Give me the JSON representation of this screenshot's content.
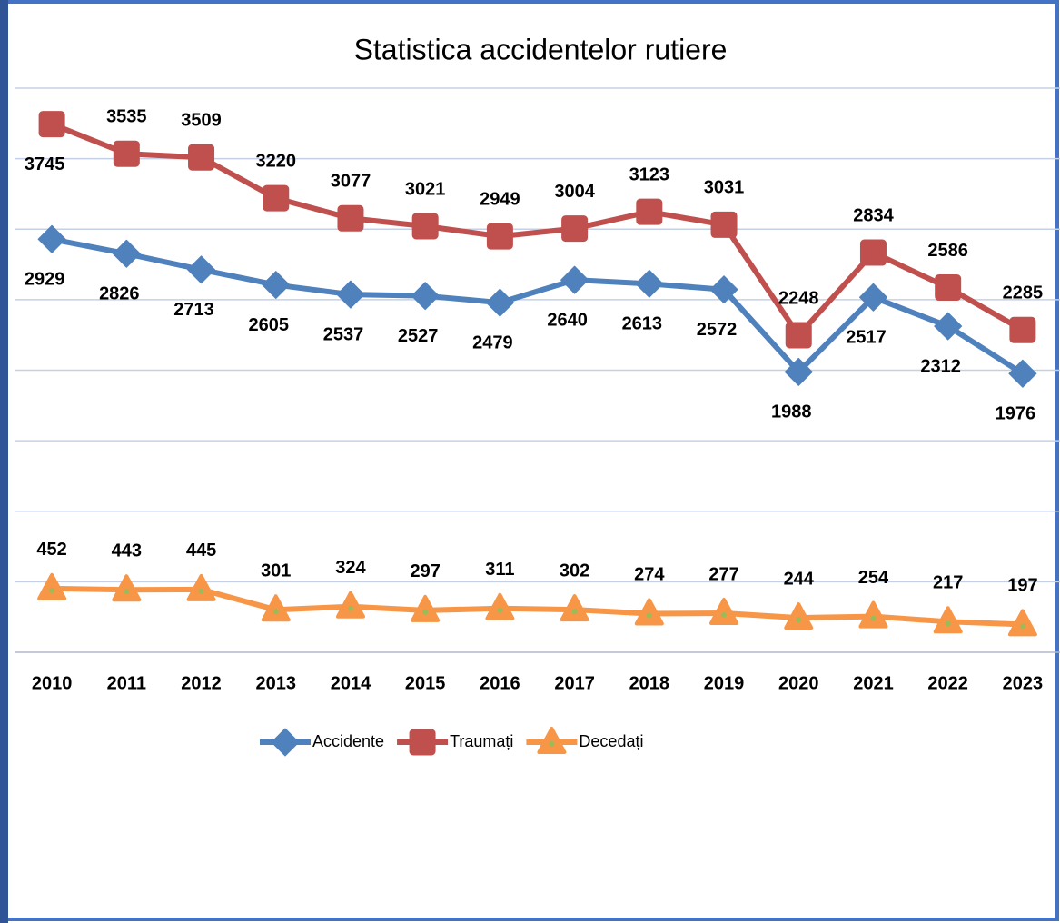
{
  "chart_data": {
    "type": "line",
    "title": "Statistica accidentelor rutiere",
    "categories": [
      "2010",
      "2011",
      "2012",
      "2013",
      "2014",
      "2015",
      "2016",
      "2017",
      "2018",
      "2019",
      "2020",
      "2021",
      "2022",
      "2023"
    ],
    "series": [
      {
        "name": "Accidente",
        "color": "#4f81bd",
        "marker": "diamond",
        "values": [
          2929,
          2826,
          2713,
          2605,
          2537,
          2527,
          2479,
          2640,
          2613,
          2572,
          1988,
          2517,
          2312,
          1976
        ]
      },
      {
        "name": "Traumați",
        "color": "#c0504d",
        "marker": "square",
        "values": [
          3745,
          3535,
          3509,
          3220,
          3077,
          3021,
          2949,
          3004,
          3123,
          3031,
          2248,
          2834,
          2586,
          2285
        ]
      },
      {
        "name": "Decedați",
        "color": "#f79646",
        "marker": "triangle",
        "values": [
          452,
          443,
          445,
          301,
          324,
          297,
          311,
          302,
          274,
          277,
          244,
          254,
          217,
          197
        ]
      }
    ],
    "ylim": [
      0,
      4000
    ],
    "yticks": [
      0,
      500,
      1000,
      1500,
      2000,
      2500,
      3000,
      3500,
      4000
    ],
    "ytick_labels": false,
    "grid": true,
    "legend": "bottom"
  }
}
